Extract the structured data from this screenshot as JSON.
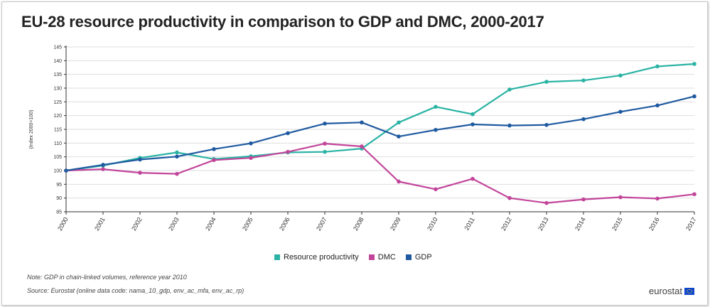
{
  "title": "EU-28 resource productivity in comparison to GDP and DMC, 2000-2017",
  "note": "Note: GDP in chain-linked volumes, reference year 2010",
  "source": "Source: Eurostat (online data code: nama_10_gdp, env_ac_mfa, env_ac_rp)",
  "brand": "eurostat",
  "colors": {
    "resource_productivity": "#2ab3a4",
    "dmc": "#c2459a",
    "gdp": "#1f5aa0",
    "grid": "#dedede",
    "axis": "#333333"
  },
  "chart_data": {
    "type": "line",
    "title": "EU-28 resource productivity in comparison to GDP and DMC, 2000-2017",
    "ylabel": "(Index 2000=100)",
    "xlabel": "",
    "ylim": [
      85,
      145
    ],
    "yticks": [
      85,
      90,
      95,
      100,
      105,
      110,
      115,
      120,
      125,
      130,
      135,
      140,
      145
    ],
    "grid": true,
    "legend_position": "bottom",
    "x": [
      "2000",
      "2001",
      "2002",
      "2003",
      "2004",
      "2005",
      "2006",
      "2007",
      "2008",
      "2009",
      "2010",
      "2011",
      "2012",
      "2013",
      "2014",
      "2015",
      "2016",
      "2017"
    ],
    "series": [
      {
        "name": "Resource productivity",
        "color": "#2ab3a4",
        "values": [
          100,
          101.8,
          104.6,
          106.6,
          104.2,
          105.2,
          106.6,
          106.8,
          108.0,
          117.5,
          123.2,
          120.5,
          129.5,
          132.3,
          132.8,
          134.6,
          137.9,
          138.8
        ]
      },
      {
        "name": "DMC",
        "color": "#c2459a",
        "values": [
          100,
          100.5,
          99.2,
          98.8,
          103.8,
          104.6,
          106.8,
          109.8,
          108.8,
          96.0,
          93.2,
          97.0,
          90.0,
          88.2,
          89.5,
          90.3,
          89.8,
          91.4
        ]
      },
      {
        "name": "GDP",
        "color": "#1f5aa0",
        "values": [
          100,
          102.1,
          104.0,
          105.1,
          107.8,
          109.9,
          113.6,
          117.1,
          117.5,
          112.4,
          114.8,
          116.8,
          116.4,
          116.6,
          118.7,
          121.4,
          123.7,
          127.0
        ]
      }
    ]
  }
}
